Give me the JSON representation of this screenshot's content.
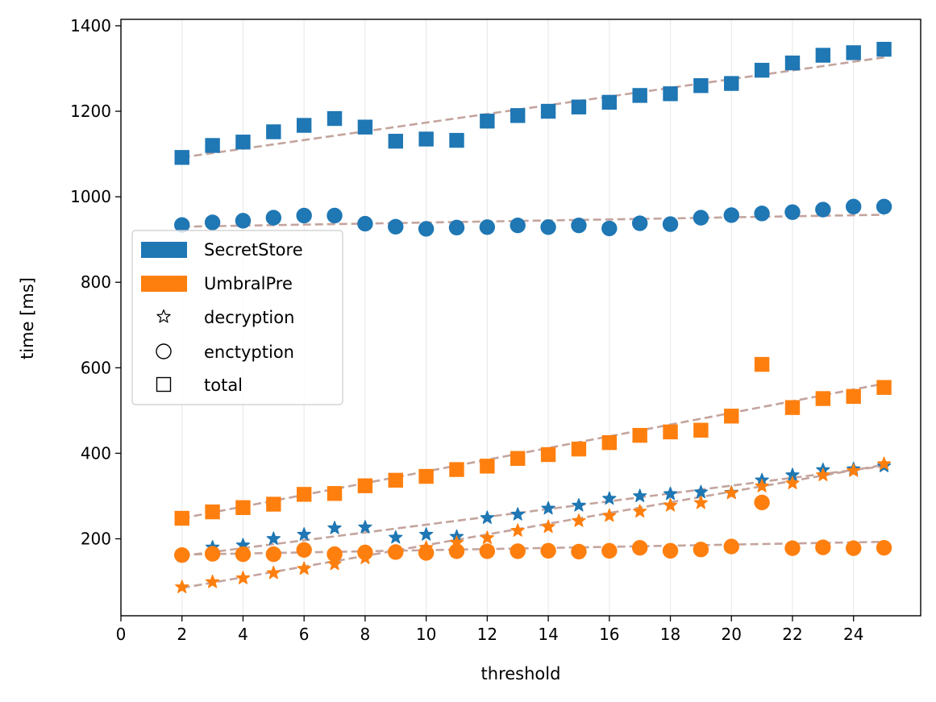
{
  "chart_data": {
    "type": "scatter",
    "title": "",
    "xlabel": "threshold",
    "ylabel": "time [ms]",
    "xlim": [
      0,
      26.2
    ],
    "ylim": [
      20,
      1415
    ],
    "x_ticks": [
      0,
      2,
      4,
      6,
      8,
      10,
      12,
      14,
      16,
      18,
      20,
      22,
      24
    ],
    "y_ticks": [
      200,
      400,
      600,
      800,
      1000,
      1200,
      1400
    ],
    "x_grid": true,
    "y_grid": false,
    "legend_position": "center-left",
    "legend": {
      "entries": [
        {
          "label": "SecretStore",
          "kind": "color",
          "color": "#1f77b4"
        },
        {
          "label": "UmbralPre",
          "kind": "color",
          "color": "#ff7f0e"
        },
        {
          "label": "decryption",
          "kind": "marker",
          "marker": "star"
        },
        {
          "label": "enctyption",
          "kind": "marker",
          "marker": "circle"
        },
        {
          "label": "total",
          "kind": "marker",
          "marker": "square"
        }
      ]
    },
    "x": [
      2,
      3,
      4,
      5,
      6,
      7,
      8,
      9,
      10,
      11,
      12,
      13,
      14,
      15,
      16,
      17,
      18,
      19,
      20,
      21,
      22,
      23,
      24,
      25
    ],
    "series": [
      {
        "system": "SecretStore",
        "metric": "total",
        "marker": "square",
        "color": "#1f77b4",
        "values": [
          1092,
          1120,
          1128,
          1152,
          1167,
          1183,
          1163,
          1130,
          1135,
          1132,
          1177,
          1190,
          1200,
          1210,
          1221,
          1237,
          1241,
          1260,
          1265,
          1296,
          1313,
          1331,
          1337,
          1345
        ],
        "trend": [
          1092,
          1326
        ]
      },
      {
        "system": "SecretStore",
        "metric": "enctyption",
        "marker": "circle",
        "color": "#1f77b4",
        "values": [
          934,
          940,
          944,
          951,
          956,
          956,
          937,
          930,
          925,
          928,
          929,
          933,
          929,
          933,
          926,
          938,
          936,
          951,
          957,
          961,
          964,
          970,
          977,
          977
        ],
        "trend": [
          930,
          958
        ]
      },
      {
        "system": "SecretStore",
        "metric": "decryption",
        "marker": "star",
        "color": "#1f77b4",
        "values": [
          160,
          180,
          185,
          200,
          210,
          225,
          227,
          203,
          210,
          205,
          249,
          257,
          271,
          278,
          294,
          300,
          305,
          309,
          308,
          337,
          349,
          361,
          363,
          370
        ],
        "trend": [
          160,
          370
        ]
      },
      {
        "system": "UmbralPre",
        "metric": "total",
        "marker": "square",
        "color": "#ff7f0e",
        "values": [
          248,
          263,
          273,
          281,
          304,
          306,
          324,
          337,
          346,
          362,
          370,
          388,
          397,
          410,
          425,
          442,
          450,
          454,
          487,
          608,
          507,
          528,
          533,
          554
        ],
        "trend": [
          248,
          563
        ]
      },
      {
        "system": "UmbralPre",
        "metric": "enctyption",
        "marker": "circle",
        "color": "#ff7f0e",
        "values": [
          162,
          165,
          164,
          164,
          174,
          164,
          168,
          169,
          167,
          171,
          171,
          171,
          172,
          170,
          172,
          179,
          172,
          175,
          182,
          285,
          178,
          180,
          178,
          179
        ],
        "trend": [
          163,
          193
        ]
      },
      {
        "system": "UmbralPre",
        "metric": "decryption",
        "marker": "star",
        "color": "#ff7f0e",
        "values": [
          87,
          99,
          108,
          120,
          130,
          141,
          155,
          168,
          179,
          191,
          202,
          219,
          228,
          242,
          254,
          264,
          278,
          284,
          307,
          323,
          330,
          349,
          359,
          375
        ],
        "trend": [
          85,
          373
        ]
      }
    ],
    "trend_color": "#c4a49e"
  }
}
